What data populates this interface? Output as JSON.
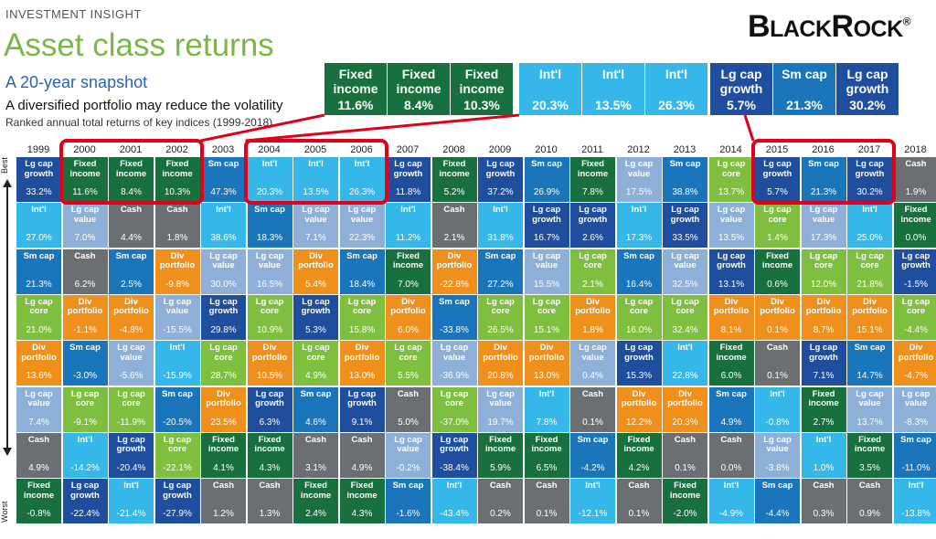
{
  "header": {
    "kicker": "INVESTMENT INSIGHT",
    "title": "Asset class returns",
    "subtitle": "A 20-year snapshot",
    "tagline": "A diversified portfolio may reduce the volatility",
    "note": "Ranked annual total returns of key indices (1999-2018)",
    "logo_big_b": "B",
    "logo_small_1": "LACK",
    "logo_big_r": "R",
    "logo_small_2": "OCK",
    "logo_reg": "®"
  },
  "axis": {
    "best": "Best",
    "worst": "Worst"
  },
  "colors": {
    "Lg cap growth": "#1f4e9e",
    "Fixed income": "#19703f",
    "Int'l": "#35b7ea",
    "Sm cap": "#1a75bb",
    "Cash": "#6c6f72",
    "Lg cap value": "#8eb0d8",
    "Div portfolio": "#f0901c",
    "Lg cap core": "#7fbf3f",
    "highlight": "#e0001b"
  },
  "callouts": [
    {
      "label": "Fixed income",
      "value": "11.6%"
    },
    {
      "label": "Fixed income",
      "value": "8.4%"
    },
    {
      "label": "Fixed income",
      "value": "10.3%"
    },
    {
      "label": "Int'l",
      "value": "20.3%"
    },
    {
      "label": "Int'l",
      "value": "13.5%"
    },
    {
      "label": "Int'l",
      "value": "26.3%"
    },
    {
      "label": "Lg cap growth",
      "value": "5.7%"
    },
    {
      "label": "Sm cap",
      "value": "21.3%"
    },
    {
      "label": "Lg cap growth",
      "value": "30.2%"
    }
  ],
  "chart_data": {
    "type": "table",
    "years": [
      "1999",
      "2000",
      "2001",
      "2002",
      "2003",
      "2004",
      "2005",
      "2006",
      "2007",
      "2008",
      "2009",
      "2010",
      "2011",
      "2012",
      "2013",
      "2014",
      "2015",
      "2016",
      "2017",
      "2018"
    ],
    "columns": [
      [
        [
          "Lg cap growth",
          "33.2%"
        ],
        [
          "Int'l",
          "27.0%"
        ],
        [
          "Sm cap",
          "21.3%"
        ],
        [
          "Lg cap core",
          "21.0%"
        ],
        [
          "Div portfolio",
          "13.6%"
        ],
        [
          "Lg cap value",
          "7.4%"
        ],
        [
          "Cash",
          "4.9%"
        ],
        [
          "Fixed income",
          "-0.8%"
        ]
      ],
      [
        [
          "Fixed income",
          "11.6%"
        ],
        [
          "Lg cap value",
          "7.0%"
        ],
        [
          "Cash",
          "6.2%"
        ],
        [
          "Div portfolio",
          "-1.1%"
        ],
        [
          "Sm cap",
          "-3.0%"
        ],
        [
          "Lg cap core",
          "-9.1%"
        ],
        [
          "Int'l",
          "-14.2%"
        ],
        [
          "Lg cap growth",
          "-22.4%"
        ]
      ],
      [
        [
          "Fixed income",
          "8.4%"
        ],
        [
          "Cash",
          "4.4%"
        ],
        [
          "Sm cap",
          "2.5%"
        ],
        [
          "Div portfolio",
          "-4.8%"
        ],
        [
          "Lg cap value",
          "-5.6%"
        ],
        [
          "Lg cap core",
          "-11.9%"
        ],
        [
          "Lg cap growth",
          "-20.4%"
        ],
        [
          "Int'l",
          "-21.4%"
        ]
      ],
      [
        [
          "Fixed income",
          "10.3%"
        ],
        [
          "Cash",
          "1.8%"
        ],
        [
          "Div portfolio",
          "-9.8%"
        ],
        [
          "Lg cap value",
          "-15.5%"
        ],
        [
          "Int'l",
          "-15.9%"
        ],
        [
          "Sm cap",
          "-20.5%"
        ],
        [
          "Lg cap core",
          "-22.1%"
        ],
        [
          "Lg cap growth",
          "-27.9%"
        ]
      ],
      [
        [
          "Sm cap",
          "47.3%"
        ],
        [
          "Int'l",
          "38.6%"
        ],
        [
          "Lg cap value",
          "30.0%"
        ],
        [
          "Lg cap growth",
          "29.8%"
        ],
        [
          "Lg cap core",
          "28.7%"
        ],
        [
          "Div portfolio",
          "23.5%"
        ],
        [
          "Fixed income",
          "4.1%"
        ],
        [
          "Cash",
          "1.2%"
        ]
      ],
      [
        [
          "Int'l",
          "20.3%"
        ],
        [
          "Sm cap",
          "18.3%"
        ],
        [
          "Lg cap value",
          "16.5%"
        ],
        [
          "Lg cap core",
          "10.9%"
        ],
        [
          "Div portfolio",
          "10.5%"
        ],
        [
          "Lg cap growth",
          "6.3%"
        ],
        [
          "Fixed income",
          "4.3%"
        ],
        [
          "Cash",
          "1.3%"
        ]
      ],
      [
        [
          "Int'l",
          "13.5%"
        ],
        [
          "Lg cap value",
          "7.1%"
        ],
        [
          "Div portfolio",
          "5.4%"
        ],
        [
          "Lg cap growth",
          "5.3%"
        ],
        [
          "Lg cap core",
          "4.9%"
        ],
        [
          "Sm cap",
          "4.6%"
        ],
        [
          "Cash",
          "3.1%"
        ],
        [
          "Fixed income",
          "2.4%"
        ]
      ],
      [
        [
          "Int'l",
          "26.3%"
        ],
        [
          "Lg cap value",
          "22.3%"
        ],
        [
          "Sm cap",
          "18.4%"
        ],
        [
          "Lg cap core",
          "15.8%"
        ],
        [
          "Div portfolio",
          "13.0%"
        ],
        [
          "Lg cap growth",
          "9.1%"
        ],
        [
          "Cash",
          "4.9%"
        ],
        [
          "Fixed income",
          "4.3%"
        ]
      ],
      [
        [
          "Lg cap growth",
          "11.8%"
        ],
        [
          "Int'l",
          "11.2%"
        ],
        [
          "Fixed income",
          "7.0%"
        ],
        [
          "Div portfolio",
          "6.0%"
        ],
        [
          "Lg cap core",
          "5.5%"
        ],
        [
          "Cash",
          "5.0%"
        ],
        [
          "Lg cap value",
          "-0.2%"
        ],
        [
          "Sm cap",
          "-1.6%"
        ]
      ],
      [
        [
          "Fixed income",
          "5.2%"
        ],
        [
          "Cash",
          "2.1%"
        ],
        [
          "Div portfolio",
          "-22.8%"
        ],
        [
          "Sm cap",
          "-33.8%"
        ],
        [
          "Lg cap value",
          "-36.9%"
        ],
        [
          "Lg cap core",
          "-37.0%"
        ],
        [
          "Lg cap growth",
          "-38.4%"
        ],
        [
          "Int'l",
          "-43.4%"
        ]
      ],
      [
        [
          "Lg cap growth",
          "37.2%"
        ],
        [
          "Int'l",
          "31.8%"
        ],
        [
          "Sm cap",
          "27.2%"
        ],
        [
          "Lg cap core",
          "26.5%"
        ],
        [
          "Div portfolio",
          "20.8%"
        ],
        [
          "Lg cap value",
          "19.7%"
        ],
        [
          "Fixed income",
          "5.9%"
        ],
        [
          "Cash",
          "0.2%"
        ]
      ],
      [
        [
          "Sm cap",
          "26.9%"
        ],
        [
          "Lg cap growth",
          "16.7%"
        ],
        [
          "Lg cap value",
          "15.5%"
        ],
        [
          "Lg cap core",
          "15.1%"
        ],
        [
          "Div portfolio",
          "13.0%"
        ],
        [
          "Int'l",
          "7.8%"
        ],
        [
          "Fixed income",
          "6.5%"
        ],
        [
          "Cash",
          "0.1%"
        ]
      ],
      [
        [
          "Fixed income",
          "7.8%"
        ],
        [
          "Lg cap growth",
          "2.6%"
        ],
        [
          "Lg cap core",
          "2.1%"
        ],
        [
          "Div portfolio",
          "1.8%"
        ],
        [
          "Lg cap value",
          "0.4%"
        ],
        [
          "Cash",
          "0.1%"
        ],
        [
          "Sm cap",
          "-4.2%"
        ],
        [
          "Int'l",
          "-12.1%"
        ]
      ],
      [
        [
          "Lg cap value",
          "17.5%"
        ],
        [
          "Int'l",
          "17.3%"
        ],
        [
          "Sm cap",
          "16.4%"
        ],
        [
          "Lg cap core",
          "16.0%"
        ],
        [
          "Lg cap growth",
          "15.3%"
        ],
        [
          "Div portfolio",
          "12.2%"
        ],
        [
          "Fixed income",
          "4.2%"
        ],
        [
          "Cash",
          "0.1%"
        ]
      ],
      [
        [
          "Sm cap",
          "38.8%"
        ],
        [
          "Lg cap growth",
          "33.5%"
        ],
        [
          "Lg cap value",
          "32.5%"
        ],
        [
          "Lg cap core",
          "32.4%"
        ],
        [
          "Int'l",
          "22.8%"
        ],
        [
          "Div portfolio",
          "20.3%"
        ],
        [
          "Cash",
          "0.1%"
        ],
        [
          "Fixed income",
          "-2.0%"
        ]
      ],
      [
        [
          "Lg cap core",
          "13.7%"
        ],
        [
          "Lg cap value",
          "13.5%"
        ],
        [
          "Lg cap growth",
          "13.1%"
        ],
        [
          "Div portfolio",
          "8.1%"
        ],
        [
          "Fixed income",
          "6.0%"
        ],
        [
          "Sm cap",
          "4.9%"
        ],
        [
          "Cash",
          "0.0%"
        ],
        [
          "Int'l",
          "-4.9%"
        ]
      ],
      [
        [
          "Lg cap growth",
          "5.7%"
        ],
        [
          "Lg cap core",
          "1.4%"
        ],
        [
          "Fixed income",
          "0.6%"
        ],
        [
          "Div portfolio",
          "0.1%"
        ],
        [
          "Cash",
          "0.1%"
        ],
        [
          "Int'l",
          "-0.8%"
        ],
        [
          "Lg cap value",
          "-3.8%"
        ],
        [
          "Sm cap",
          "-4.4%"
        ]
      ],
      [
        [
          "Sm cap",
          "21.3%"
        ],
        [
          "Lg cap value",
          "17.3%"
        ],
        [
          "Lg cap core",
          "12.0%"
        ],
        [
          "Div portfolio",
          "8.7%"
        ],
        [
          "Lg cap growth",
          "7.1%"
        ],
        [
          "Fixed income",
          "2.7%"
        ],
        [
          "Int'l",
          "1.0%"
        ],
        [
          "Cash",
          "0.3%"
        ]
      ],
      [
        [
          "Lg cap growth",
          "30.2%"
        ],
        [
          "Int'l",
          "25.0%"
        ],
        [
          "Lg cap core",
          "21.8%"
        ],
        [
          "Div portfolio",
          "15.1%"
        ],
        [
          "Sm cap",
          "14.7%"
        ],
        [
          "Lg cap value",
          "13.7%"
        ],
        [
          "Fixed income",
          "3.5%"
        ],
        [
          "Cash",
          "0.9%"
        ]
      ],
      [
        [
          "Cash",
          "1.9%"
        ],
        [
          "Fixed income",
          "0.0%"
        ],
        [
          "Lg cap growth",
          "-1.5%"
        ],
        [
          "Lg cap core",
          "-4.4%"
        ],
        [
          "Div portfolio",
          "-4.7%"
        ],
        [
          "Lg cap value",
          "-8.3%"
        ],
        [
          "Sm cap",
          "-11.0%"
        ],
        [
          "Int'l",
          "-13.8%"
        ]
      ]
    ],
    "highlights": [
      [
        "2000",
        "2002"
      ],
      [
        "2004",
        "2006"
      ],
      [
        "2015",
        "2017"
      ]
    ]
  }
}
